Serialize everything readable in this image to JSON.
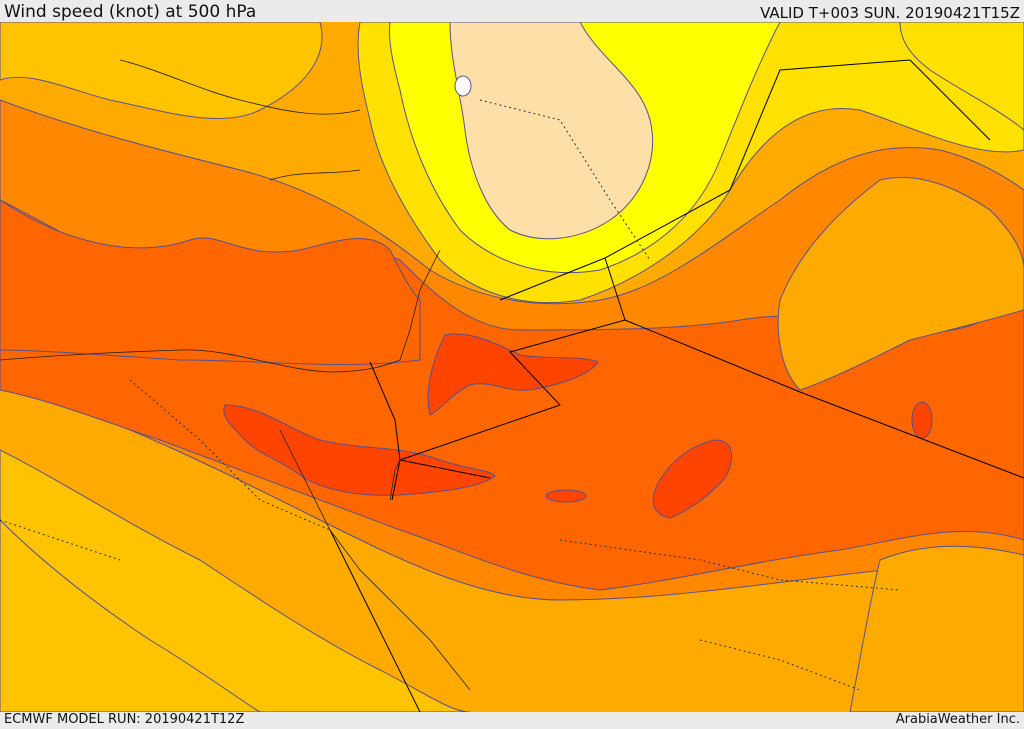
{
  "header": {
    "title": "Wind speed (knot) at 500 hPa",
    "valid": "VALID T+003 SUN. 20190421T15Z"
  },
  "footer": {
    "model_run": "ECMWF MODEL RUN: 20190421T12Z",
    "brand": "ArabiaWeather Inc."
  },
  "map": {
    "variable": "wind speed",
    "units": "knot",
    "level": "500 hPa",
    "palette": {
      "band_1": "#ffdfa8",
      "band_2": "#ffff00",
      "band_3": "#ffe100",
      "band_4": "#ffc300",
      "band_5": "#ffaa00",
      "band_6": "#ff8800",
      "band_7": "#ff6600",
      "band_8": "#ff4400",
      "contour_line": "#5a4f8c",
      "border_line": "#000000"
    }
  }
}
